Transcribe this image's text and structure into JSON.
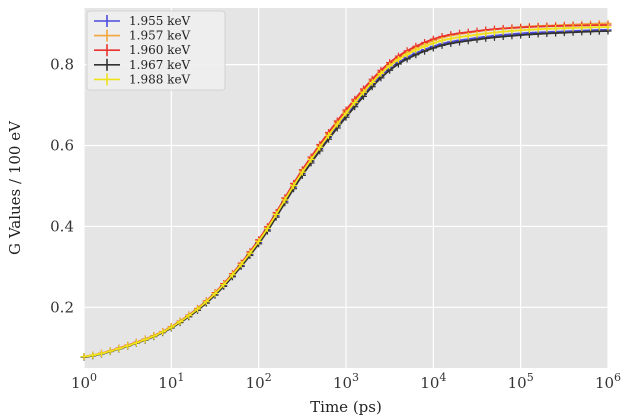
{
  "chart_data": {
    "type": "line",
    "title": "",
    "xlabel": "Time (ps)",
    "ylabel": "G Values / 100 eV",
    "xscale": "log",
    "xlim": [
      1,
      1000000
    ],
    "ylim": [
      0.05,
      0.94
    ],
    "xticks": [
      {
        "value": 1,
        "base": "10",
        "exp": "0"
      },
      {
        "value": 10,
        "base": "10",
        "exp": "1"
      },
      {
        "value": 100,
        "base": "10",
        "exp": "2"
      },
      {
        "value": 1000,
        "base": "10",
        "exp": "3"
      },
      {
        "value": 10000,
        "base": "10",
        "exp": "4"
      },
      {
        "value": 100000,
        "base": "10",
        "exp": "5"
      },
      {
        "value": 1000000,
        "base": "10",
        "exp": "6"
      }
    ],
    "yticks": [
      {
        "value": 0.2,
        "label": "0.2"
      },
      {
        "value": 0.4,
        "label": "0.4"
      },
      {
        "value": 0.6,
        "label": "0.6"
      },
      {
        "value": 0.8,
        "label": "0.8"
      }
    ],
    "grid": true,
    "background": "#e5e5e5",
    "legend_position": "top-left",
    "marker": "plus",
    "x": [
      1,
      3.16,
      10,
      31.6,
      100,
      316,
      1000,
      3160,
      10000,
      31600,
      100000,
      316000,
      1000000
    ],
    "series": [
      {
        "name": "1.955 keV",
        "color": "#4b4bdc",
        "values": [
          0.077,
          0.105,
          0.15,
          0.232,
          0.36,
          0.53,
          0.675,
          0.79,
          0.845,
          0.866,
          0.877,
          0.882,
          0.886
        ]
      },
      {
        "name": "1.957 keV",
        "color": "#f2a53a",
        "values": [
          0.078,
          0.106,
          0.152,
          0.236,
          0.366,
          0.538,
          0.685,
          0.802,
          0.86,
          0.882,
          0.893,
          0.898,
          0.902
        ]
      },
      {
        "name": "1.960 keV",
        "color": "#e8332f",
        "values": [
          0.078,
          0.106,
          0.152,
          0.236,
          0.367,
          0.54,
          0.688,
          0.805,
          0.863,
          0.883,
          0.892,
          0.896,
          0.898
        ]
      },
      {
        "name": "1.967 keV",
        "color": "#333333",
        "values": [
          0.077,
          0.104,
          0.149,
          0.23,
          0.357,
          0.526,
          0.67,
          0.786,
          0.841,
          0.862,
          0.873,
          0.879,
          0.883
        ]
      },
      {
        "name": "1.988 keV",
        "color": "#f0e21a",
        "values": [
          0.078,
          0.105,
          0.151,
          0.234,
          0.363,
          0.534,
          0.68,
          0.797,
          0.853,
          0.874,
          0.885,
          0.89,
          0.893
        ]
      }
    ]
  }
}
